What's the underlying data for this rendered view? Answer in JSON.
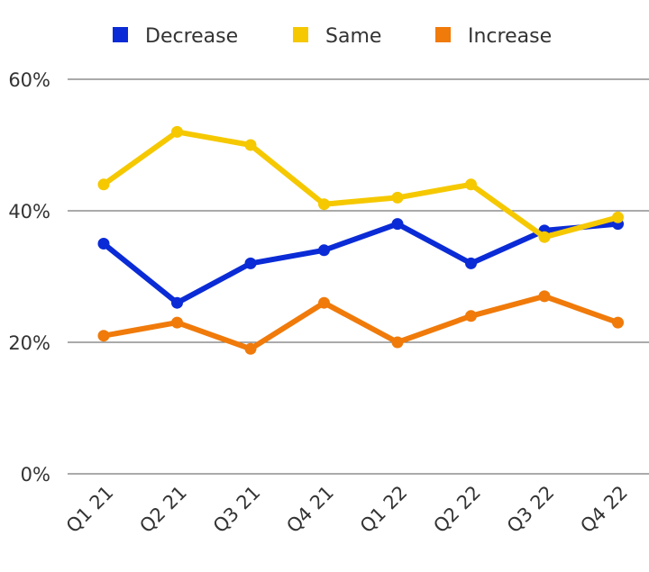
{
  "chart_data": {
    "type": "line",
    "categories": [
      "Q1 21",
      "Q2 21",
      "Q3 21",
      "Q4 21",
      "Q1 22",
      "Q2 22",
      "Q3 22",
      "Q4 22"
    ],
    "series": [
      {
        "name": "Decrease",
        "color": "#0a2bd6",
        "values": [
          35,
          26,
          32,
          34,
          38,
          32,
          37,
          38
        ]
      },
      {
        "name": "Same",
        "color": "#f5c800",
        "values": [
          44,
          52,
          50,
          41,
          42,
          44,
          36,
          39
        ]
      },
      {
        "name": "Increase",
        "color": "#f07a0a",
        "values": [
          21,
          23,
          19,
          26,
          20,
          24,
          27,
          23
        ]
      }
    ],
    "y_ticks": [
      "0%",
      "20%",
      "40%",
      "60%"
    ],
    "ylim": [
      0,
      60
    ],
    "grid": true,
    "legend_position": "top"
  }
}
